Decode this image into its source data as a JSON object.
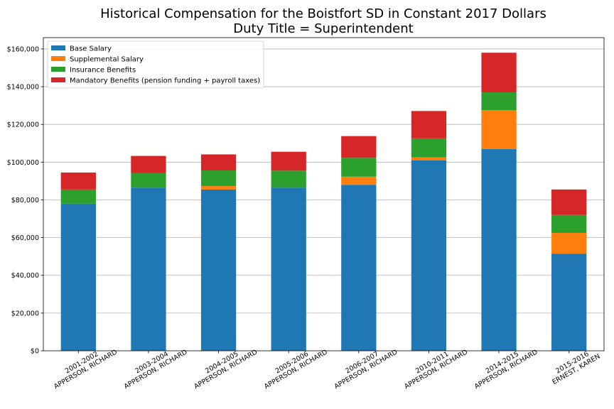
{
  "chart_data": {
    "type": "bar",
    "stacked": true,
    "title": "Historical Compensation for the Boistfort SD in Constant 2017 Dollars",
    "subtitle": "Duty Title = Superintendent",
    "xlabel": "",
    "ylabel": "",
    "ylim": [
      0,
      166000
    ],
    "yticks": [
      0,
      20000,
      40000,
      60000,
      80000,
      100000,
      120000,
      140000,
      160000
    ],
    "ytick_labels": [
      "$0",
      "$20,000",
      "$40,000",
      "$60,000",
      "$80,000",
      "$100,000",
      "$120,000",
      "$140,000",
      "$160,000"
    ],
    "grid": "horizontal",
    "legend_position": "top-left",
    "categories": [
      [
        "2001-2002",
        "APPERSON, RICHARD"
      ],
      [
        "2003-2004",
        "APPERSON, RICHARD"
      ],
      [
        "2004-2005",
        "APPERSON, RICHARD"
      ],
      [
        "2005-2006",
        "APPERSON, RICHARD"
      ],
      [
        "2006-2007",
        "APPERSON, RICHARD"
      ],
      [
        "2010-2011",
        "APPERSON, RICHARD"
      ],
      [
        "2014-2015",
        "APPERSON, RICHARD"
      ],
      [
        "2015-2016",
        "ERNEST, KAREN"
      ]
    ],
    "series": [
      {
        "name": "Base Salary",
        "color": "#1f77b4",
        "values": [
          78000,
          86500,
          85500,
          86500,
          88000,
          101000,
          107000,
          51500
        ]
      },
      {
        "name": "Supplemental Salary",
        "color": "#ff7f0e",
        "values": [
          0,
          0,
          1800,
          0,
          4300,
          1600,
          20500,
          11000
        ]
      },
      {
        "name": "Insurance Benefits",
        "color": "#2ca02c",
        "values": [
          7500,
          7800,
          8300,
          9000,
          10000,
          10000,
          9500,
          9500
        ]
      },
      {
        "name": "Mandatory Benefits (pension funding + payroll taxes)",
        "color": "#d62728",
        "values": [
          9000,
          9000,
          8500,
          10000,
          11500,
          14500,
          21000,
          13500
        ]
      }
    ]
  }
}
